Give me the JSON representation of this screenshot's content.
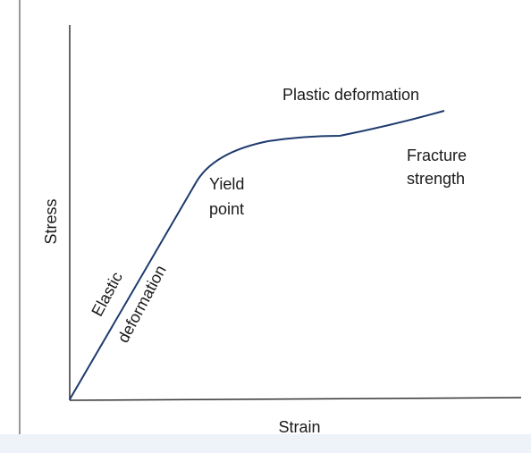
{
  "diagram": {
    "y_axis_label": "Stress",
    "x_axis_label": "Strain",
    "annotations": {
      "elastic_1": "Elastic",
      "elastic_2": "deformation",
      "yield_1": "Yield",
      "yield_2": "point",
      "plastic": "Plastic deformation",
      "fracture_1": "Fracture",
      "fracture_2": "strength"
    }
  }
}
